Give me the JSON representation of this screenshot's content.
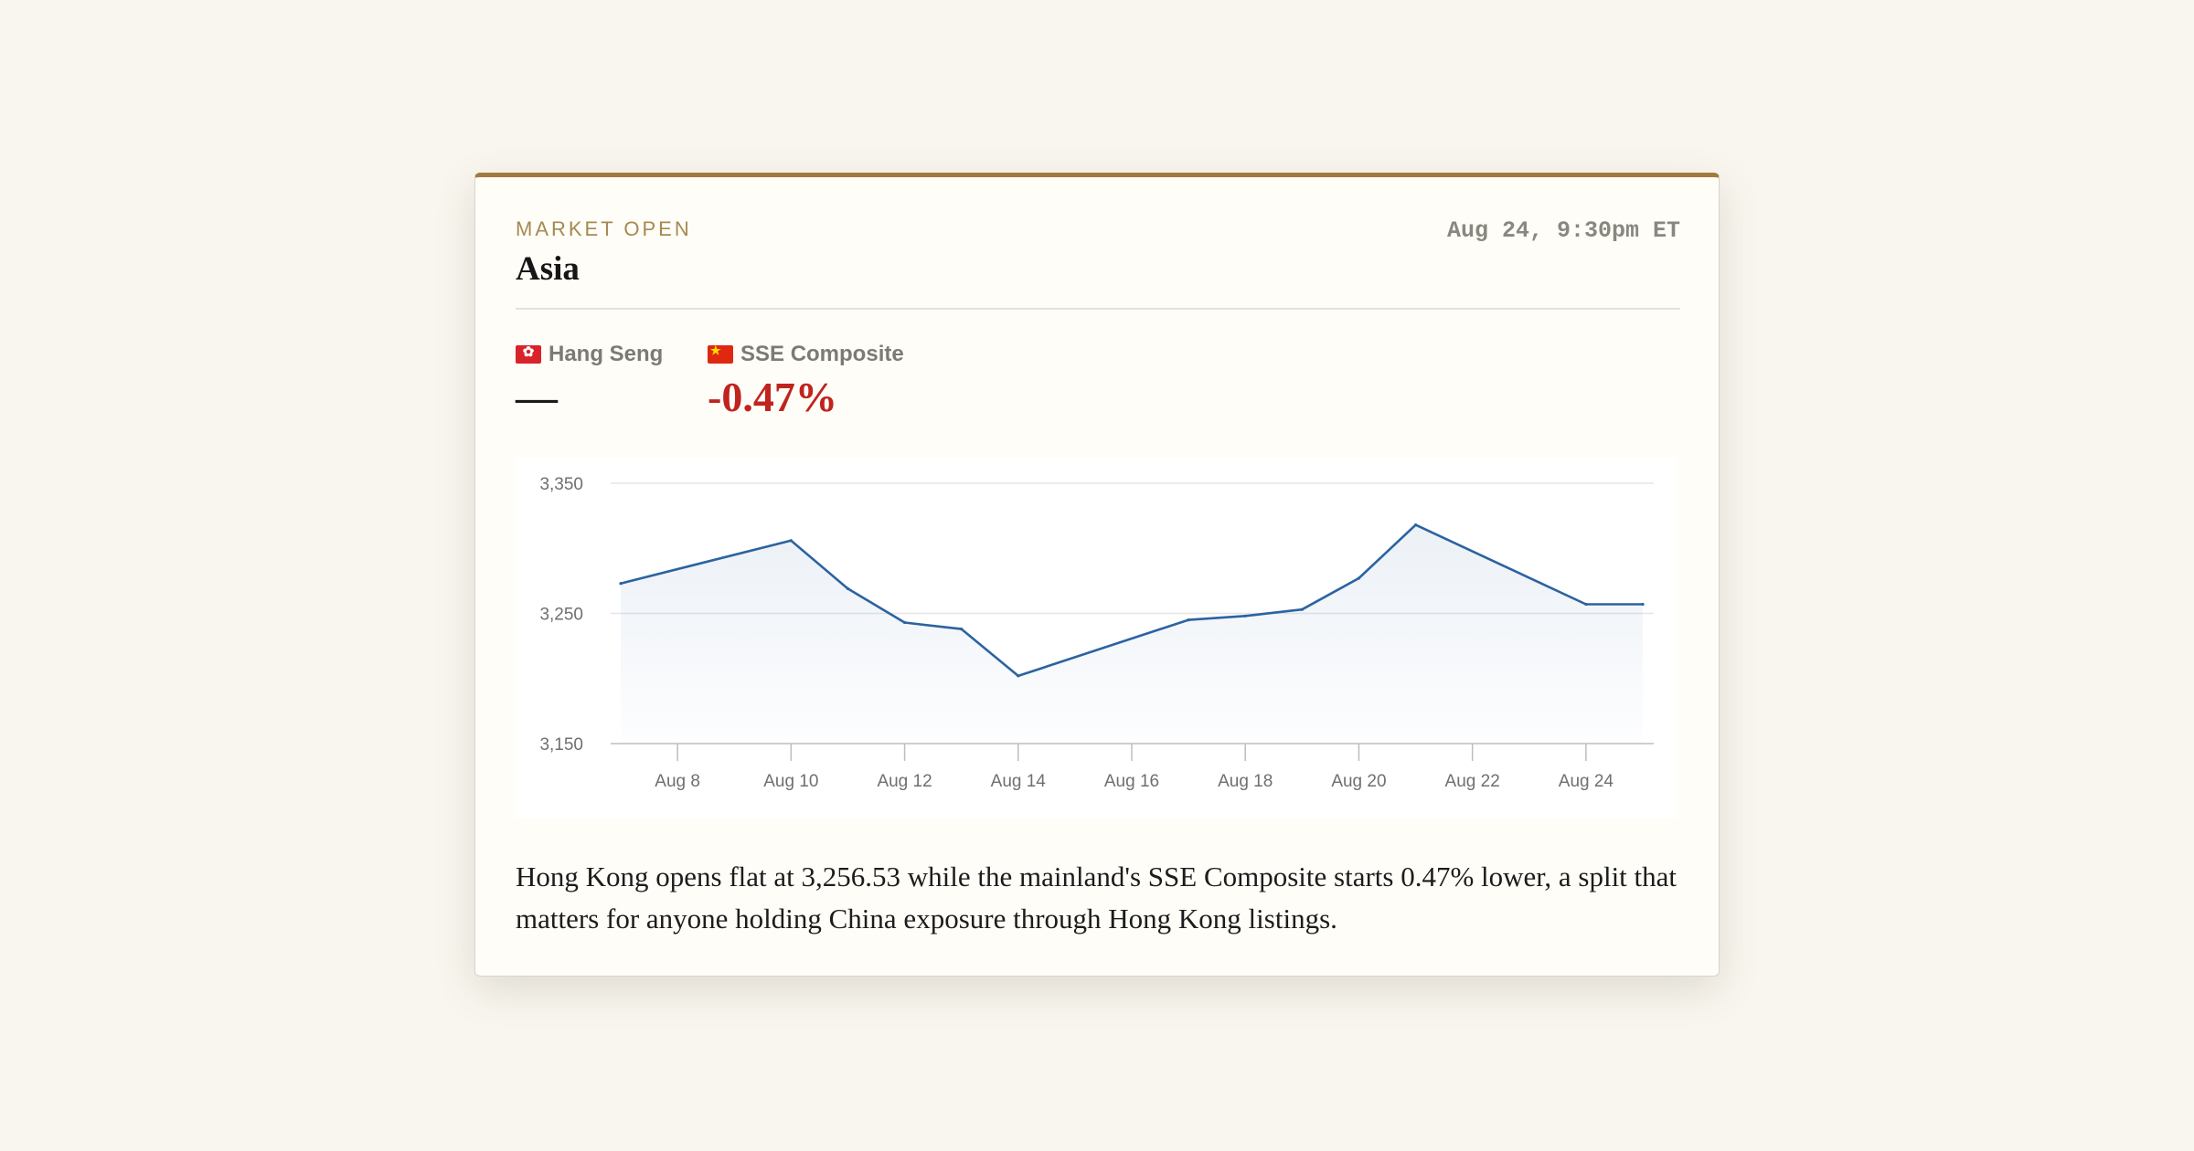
{
  "header": {
    "kicker": "MARKET OPEN",
    "title": "Asia",
    "timestamp": "Aug 24, 9:30pm ET"
  },
  "indices": [
    {
      "name": "Hang Seng",
      "flag": "hong-kong-flag-icon",
      "change": "—"
    },
    {
      "name": "SSE Composite",
      "flag": "china-flag-icon",
      "change": "-0.47%"
    }
  ],
  "colors": {
    "accent": "#a07a3e",
    "line": "#2b63a0",
    "down": "#c0241e"
  },
  "chart_data": {
    "type": "area",
    "x": [
      "Aug 7",
      "Aug 10",
      "Aug 11",
      "Aug 12",
      "Aug 13",
      "Aug 14",
      "Aug 17",
      "Aug 18",
      "Aug 19",
      "Aug 20",
      "Aug 21",
      "Aug 24",
      "Aug 25"
    ],
    "series": [
      {
        "values": [
          3273,
          3306,
          3269,
          3243,
          3238,
          3202,
          3245,
          3248,
          3253,
          3277,
          3318,
          3257,
          3257
        ]
      }
    ],
    "x_ticks": [
      "Aug 8",
      "Aug 10",
      "Aug 12",
      "Aug 14",
      "Aug 16",
      "Aug 18",
      "Aug 20",
      "Aug 22",
      "Aug 24"
    ],
    "y_ticks": [
      "3,150",
      "3,250",
      "3,350"
    ],
    "ylim": [
      3150,
      3350
    ],
    "grid": true
  },
  "summary": "Hong Kong opens flat at 3,256.53 while the mainland's SSE Composite starts 0.47% lower, a split that matters for anyone holding China exposure through Hong Kong listings."
}
